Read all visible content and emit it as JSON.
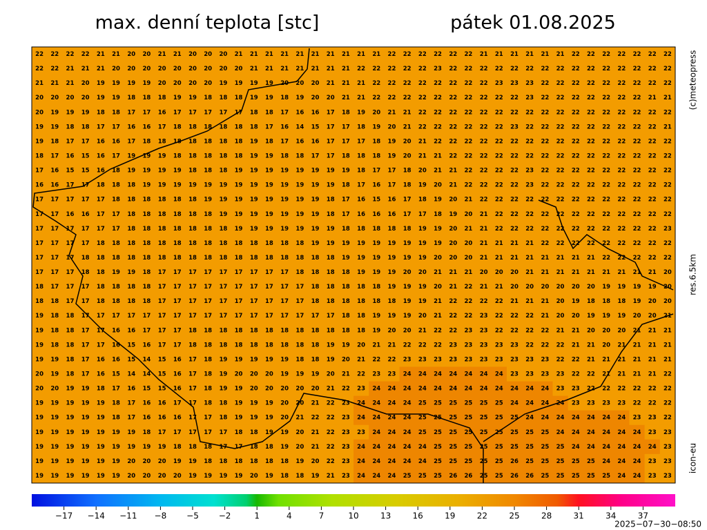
{
  "header": {
    "title": "max. denní teplota [stc]",
    "date": "pátek 01.08.2025"
  },
  "side_labels": {
    "copyright": "(c)meteopress",
    "resolution": "res.6.5km",
    "model": "icon-eu"
  },
  "timestamp": "2025−07−30−08:50",
  "map": {
    "color": "#f39c00",
    "hot_color": "#ee8600",
    "hot_threshold": 24,
    "grid": [
      [
        22,
        22,
        22,
        22,
        21,
        21,
        20,
        20,
        21,
        21,
        20,
        20,
        20,
        21,
        21,
        21,
        21,
        21,
        21,
        21,
        21,
        21,
        21,
        22,
        22,
        22,
        22,
        22,
        22,
        21,
        21,
        21,
        21,
        21,
        21,
        22,
        22,
        22,
        22,
        22,
        22,
        22
      ],
      [
        22,
        22,
        21,
        21,
        21,
        20,
        20,
        20,
        20,
        20,
        20,
        20,
        20,
        20,
        21,
        21,
        21,
        21,
        21,
        21,
        21,
        22,
        22,
        22,
        22,
        22,
        23,
        22,
        22,
        22,
        22,
        22,
        22,
        22,
        22,
        22,
        22,
        22,
        22,
        22,
        22,
        22
      ],
      [
        21,
        21,
        21,
        20,
        19,
        19,
        19,
        19,
        20,
        20,
        20,
        20,
        19,
        19,
        19,
        19,
        20,
        20,
        20,
        21,
        21,
        21,
        22,
        22,
        22,
        22,
        22,
        22,
        22,
        22,
        23,
        23,
        23,
        22,
        22,
        22,
        22,
        22,
        22,
        22,
        22,
        22
      ],
      [
        20,
        20,
        20,
        20,
        19,
        19,
        18,
        18,
        18,
        19,
        19,
        18,
        18,
        18,
        19,
        19,
        18,
        19,
        20,
        20,
        21,
        21,
        22,
        22,
        22,
        22,
        22,
        22,
        22,
        22,
        22,
        22,
        23,
        22,
        22,
        22,
        22,
        22,
        22,
        22,
        21,
        21
      ],
      [
        20,
        19,
        19,
        19,
        18,
        18,
        17,
        17,
        16,
        17,
        17,
        17,
        17,
        17,
        18,
        18,
        17,
        16,
        16,
        17,
        18,
        19,
        20,
        21,
        21,
        22,
        22,
        22,
        22,
        22,
        22,
        22,
        22,
        22,
        22,
        22,
        22,
        22,
        22,
        22,
        22,
        22
      ],
      [
        19,
        19,
        18,
        18,
        17,
        17,
        16,
        16,
        17,
        18,
        18,
        18,
        18,
        18,
        18,
        17,
        16,
        14,
        15,
        17,
        17,
        18,
        19,
        20,
        21,
        22,
        22,
        22,
        22,
        22,
        22,
        23,
        22,
        22,
        22,
        22,
        22,
        22,
        22,
        22,
        22,
        21
      ],
      [
        19,
        18,
        17,
        17,
        16,
        16,
        17,
        18,
        18,
        18,
        18,
        18,
        18,
        18,
        19,
        18,
        17,
        16,
        16,
        17,
        17,
        17,
        18,
        19,
        20,
        21,
        22,
        22,
        22,
        22,
        22,
        22,
        22,
        22,
        22,
        22,
        22,
        22,
        22,
        22,
        22,
        22
      ],
      [
        18,
        17,
        16,
        15,
        16,
        17,
        19,
        19,
        19,
        18,
        18,
        18,
        18,
        18,
        19,
        19,
        18,
        18,
        17,
        17,
        18,
        18,
        18,
        19,
        20,
        21,
        21,
        22,
        22,
        22,
        22,
        22,
        22,
        22,
        22,
        22,
        22,
        22,
        22,
        22,
        22,
        22
      ],
      [
        17,
        16,
        15,
        15,
        16,
        18,
        19,
        19,
        19,
        19,
        18,
        18,
        18,
        19,
        19,
        19,
        19,
        19,
        19,
        19,
        19,
        18,
        17,
        17,
        18,
        20,
        21,
        21,
        22,
        22,
        22,
        22,
        23,
        22,
        22,
        22,
        22,
        22,
        22,
        22,
        22,
        22
      ],
      [
        16,
        16,
        17,
        17,
        18,
        18,
        18,
        19,
        19,
        19,
        19,
        19,
        19,
        19,
        19,
        19,
        19,
        19,
        19,
        19,
        18,
        17,
        16,
        17,
        18,
        19,
        20,
        21,
        22,
        22,
        22,
        22,
        23,
        22,
        22,
        22,
        22,
        22,
        22,
        22,
        22,
        22
      ],
      [
        17,
        17,
        17,
        17,
        17,
        18,
        18,
        18,
        18,
        18,
        18,
        19,
        19,
        19,
        19,
        19,
        19,
        19,
        19,
        18,
        17,
        16,
        15,
        16,
        17,
        18,
        19,
        20,
        21,
        22,
        22,
        22,
        22,
        22,
        22,
        22,
        22,
        22,
        22,
        22,
        22,
        22
      ],
      [
        17,
        17,
        16,
        16,
        17,
        17,
        18,
        18,
        18,
        18,
        18,
        18,
        19,
        19,
        19,
        19,
        19,
        19,
        19,
        18,
        17,
        16,
        16,
        16,
        17,
        17,
        18,
        19,
        20,
        21,
        22,
        22,
        22,
        22,
        22,
        22,
        22,
        22,
        22,
        22,
        22,
        22
      ],
      [
        17,
        17,
        17,
        17,
        17,
        17,
        18,
        18,
        18,
        18,
        18,
        18,
        18,
        19,
        19,
        19,
        19,
        19,
        19,
        19,
        18,
        18,
        18,
        18,
        18,
        19,
        19,
        20,
        21,
        21,
        22,
        22,
        22,
        22,
        22,
        22,
        22,
        22,
        22,
        22,
        22,
        23
      ],
      [
        17,
        17,
        17,
        17,
        18,
        18,
        18,
        18,
        18,
        18,
        18,
        18,
        18,
        18,
        18,
        18,
        18,
        18,
        19,
        19,
        19,
        19,
        19,
        19,
        19,
        19,
        19,
        20,
        20,
        21,
        21,
        21,
        21,
        22,
        22,
        22,
        22,
        22,
        22,
        22,
        22,
        22
      ],
      [
        17,
        17,
        17,
        18,
        18,
        18,
        18,
        18,
        18,
        18,
        18,
        18,
        18,
        18,
        18,
        18,
        18,
        18,
        18,
        18,
        19,
        19,
        19,
        19,
        19,
        19,
        20,
        20,
        20,
        21,
        21,
        21,
        21,
        21,
        21,
        21,
        21,
        22,
        22,
        22,
        22,
        22
      ],
      [
        17,
        17,
        17,
        18,
        18,
        19,
        19,
        18,
        17,
        17,
        17,
        17,
        17,
        17,
        17,
        17,
        17,
        18,
        18,
        18,
        18,
        19,
        19,
        19,
        20,
        20,
        21,
        21,
        21,
        20,
        20,
        20,
        21,
        21,
        21,
        21,
        21,
        21,
        21,
        21,
        21,
        20
      ],
      [
        18,
        17,
        17,
        17,
        18,
        18,
        18,
        18,
        17,
        17,
        17,
        17,
        17,
        17,
        17,
        17,
        17,
        17,
        18,
        18,
        18,
        18,
        18,
        19,
        19,
        19,
        20,
        21,
        22,
        21,
        21,
        20,
        20,
        20,
        20,
        20,
        20,
        19,
        19,
        19,
        19,
        20
      ],
      [
        18,
        18,
        17,
        17,
        18,
        18,
        18,
        18,
        17,
        17,
        17,
        17,
        17,
        17,
        17,
        17,
        17,
        17,
        18,
        18,
        18,
        18,
        18,
        18,
        19,
        19,
        21,
        22,
        22,
        22,
        22,
        21,
        21,
        21,
        20,
        19,
        18,
        18,
        18,
        19,
        20,
        20
      ],
      [
        19,
        18,
        18,
        17,
        17,
        17,
        17,
        17,
        17,
        17,
        17,
        17,
        17,
        17,
        17,
        17,
        17,
        17,
        17,
        17,
        18,
        18,
        19,
        19,
        19,
        20,
        21,
        22,
        22,
        23,
        22,
        22,
        22,
        21,
        20,
        20,
        19,
        19,
        19,
        20,
        20,
        21
      ],
      [
        19,
        18,
        18,
        17,
        17,
        16,
        16,
        17,
        17,
        17,
        18,
        18,
        18,
        18,
        18,
        18,
        18,
        18,
        18,
        18,
        18,
        18,
        19,
        20,
        20,
        21,
        22,
        22,
        23,
        23,
        22,
        22,
        22,
        22,
        21,
        21,
        20,
        20,
        20,
        21,
        21,
        21
      ],
      [
        19,
        18,
        18,
        17,
        17,
        16,
        15,
        16,
        17,
        17,
        18,
        18,
        18,
        18,
        18,
        18,
        18,
        18,
        18,
        19,
        19,
        20,
        21,
        21,
        22,
        22,
        22,
        23,
        23,
        23,
        23,
        23,
        22,
        22,
        22,
        21,
        21,
        20,
        21,
        21,
        21,
        21
      ],
      [
        19,
        19,
        18,
        17,
        16,
        16,
        15,
        14,
        15,
        16,
        17,
        18,
        19,
        19,
        19,
        19,
        19,
        18,
        18,
        19,
        20,
        21,
        22,
        22,
        23,
        23,
        23,
        23,
        23,
        23,
        23,
        23,
        23,
        23,
        22,
        22,
        21,
        21,
        21,
        21,
        21,
        21
      ],
      [
        20,
        19,
        18,
        17,
        16,
        15,
        14,
        14,
        15,
        16,
        17,
        18,
        19,
        20,
        20,
        20,
        19,
        19,
        19,
        20,
        21,
        22,
        23,
        23,
        24,
        24,
        24,
        24,
        24,
        24,
        24,
        23,
        23,
        23,
        23,
        22,
        22,
        21,
        21,
        21,
        21,
        22
      ],
      [
        20,
        20,
        19,
        19,
        18,
        17,
        16,
        15,
        15,
        16,
        17,
        18,
        19,
        19,
        20,
        20,
        20,
        20,
        20,
        21,
        22,
        23,
        24,
        24,
        24,
        24,
        24,
        24,
        24,
        24,
        24,
        24,
        24,
        24,
        23,
        23,
        22,
        22,
        22,
        22,
        22,
        22
      ],
      [
        19,
        19,
        19,
        19,
        19,
        18,
        17,
        16,
        16,
        17,
        17,
        18,
        18,
        19,
        19,
        19,
        20,
        20,
        21,
        22,
        23,
        24,
        24,
        24,
        24,
        25,
        25,
        25,
        25,
        25,
        25,
        24,
        24,
        24,
        24,
        23,
        23,
        23,
        23,
        22,
        22,
        22
      ],
      [
        19,
        19,
        19,
        19,
        19,
        18,
        17,
        16,
        16,
        16,
        17,
        17,
        18,
        19,
        19,
        19,
        20,
        21,
        22,
        22,
        23,
        24,
        24,
        24,
        24,
        25,
        25,
        25,
        25,
        25,
        25,
        25,
        24,
        24,
        24,
        24,
        24,
        24,
        24,
        23,
        23,
        22
      ],
      [
        19,
        19,
        19,
        19,
        19,
        19,
        19,
        18,
        17,
        17,
        17,
        17,
        17,
        18,
        18,
        19,
        19,
        20,
        21,
        22,
        23,
        23,
        24,
        24,
        24,
        25,
        25,
        25,
        25,
        25,
        25,
        25,
        25,
        25,
        24,
        24,
        24,
        24,
        24,
        24,
        23,
        23
      ],
      [
        19,
        19,
        19,
        19,
        19,
        19,
        19,
        19,
        19,
        18,
        18,
        18,
        17,
        17,
        18,
        18,
        19,
        20,
        21,
        22,
        23,
        24,
        24,
        24,
        24,
        24,
        25,
        25,
        25,
        25,
        25,
        25,
        25,
        25,
        25,
        24,
        24,
        24,
        24,
        24,
        24,
        23
      ],
      [
        19,
        19,
        19,
        19,
        19,
        19,
        20,
        20,
        20,
        19,
        19,
        18,
        18,
        18,
        18,
        18,
        18,
        19,
        20,
        22,
        23,
        24,
        24,
        24,
        24,
        24,
        25,
        25,
        25,
        25,
        25,
        26,
        25,
        25,
        25,
        25,
        25,
        24,
        24,
        24,
        23,
        23
      ],
      [
        19,
        19,
        19,
        19,
        19,
        19,
        20,
        20,
        20,
        20,
        19,
        19,
        19,
        19,
        20,
        19,
        18,
        18,
        19,
        21,
        23,
        24,
        24,
        24,
        25,
        25,
        25,
        26,
        26,
        25,
        25,
        26,
        26,
        25,
        25,
        25,
        25,
        25,
        24,
        24,
        23,
        23
      ]
    ]
  },
  "colorbar": {
    "range": [
      -20,
      40
    ],
    "ticks": [
      {
        "value": -17,
        "label": "−17"
      },
      {
        "value": -14,
        "label": "−14"
      },
      {
        "value": -11,
        "label": "−11"
      },
      {
        "value": -8,
        "label": "−8"
      },
      {
        "value": -5,
        "label": "−5"
      },
      {
        "value": -2,
        "label": "−2"
      },
      1,
      4,
      7,
      10,
      13,
      16,
      19,
      22,
      25,
      28,
      31,
      34,
      37
    ],
    "stops": [
      {
        "value": -20,
        "color": "#0010e0"
      },
      {
        "value": -14,
        "color": "#1070ff"
      },
      {
        "value": -8,
        "color": "#00b8f0"
      },
      {
        "value": -3,
        "color": "#00e0d0"
      },
      {
        "value": 0,
        "color": "#00d070"
      },
      {
        "value": 1,
        "color": "#18b800"
      },
      {
        "value": 3,
        "color": "#70e000"
      },
      {
        "value": 8,
        "color": "#b0e000"
      },
      {
        "value": 14,
        "color": "#d8cc00"
      },
      {
        "value": 20,
        "color": "#ebae00"
      },
      {
        "value": 25,
        "color": "#f08800"
      },
      {
        "value": 29,
        "color": "#f05a00"
      },
      {
        "value": 31,
        "color": "#ff1020"
      },
      {
        "value": 35,
        "color": "#ff0088"
      },
      {
        "value": 40,
        "color": "#ff10c8"
      }
    ]
  }
}
